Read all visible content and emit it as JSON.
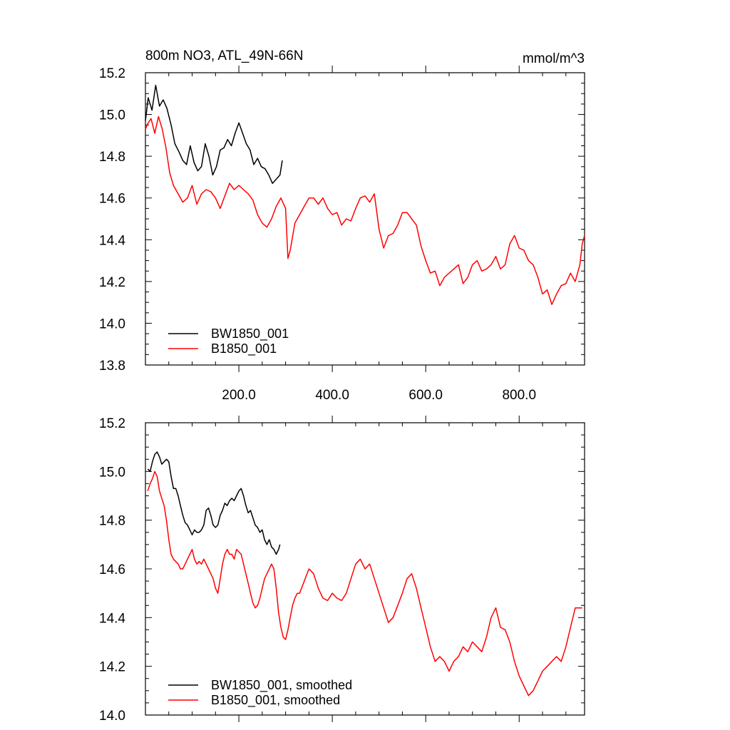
{
  "chart_data": [
    {
      "type": "line",
      "title": "800m NO3, ATL_49N-66N",
      "units_label": "mmol/m^3",
      "xlim": [
        0,
        940
      ],
      "ylim": [
        13.8,
        15.2
      ],
      "x_tick_labels": [
        "200.0",
        "400.0",
        "600.0",
        "800.0"
      ],
      "y_tick_labels": [
        "13.8",
        "14.0",
        "14.2",
        "14.4",
        "14.6",
        "14.8",
        "15.0",
        "15.2"
      ],
      "legend_position": "bottom-left",
      "grid": false,
      "series": [
        {
          "name": "BW1850_001",
          "color": "#000000",
          "x": [
            0,
            6,
            14,
            22,
            30,
            38,
            46,
            55,
            63,
            72,
            80,
            88,
            96,
            104,
            112,
            120,
            128,
            136,
            144,
            152,
            160,
            168,
            176,
            184,
            192,
            200,
            208,
            216,
            224,
            232,
            240,
            248,
            256,
            264,
            272,
            280,
            288,
            293
          ],
          "values": [
            14.97,
            15.08,
            15.02,
            15.14,
            15.04,
            15.07,
            15.03,
            14.95,
            14.86,
            14.82,
            14.78,
            14.76,
            14.85,
            14.77,
            14.73,
            14.75,
            14.86,
            14.8,
            14.71,
            14.75,
            14.83,
            14.84,
            14.88,
            14.85,
            14.91,
            14.96,
            14.91,
            14.86,
            14.83,
            14.76,
            14.79,
            14.75,
            14.74,
            14.71,
            14.67,
            14.69,
            14.71,
            14.78
          ]
        },
        {
          "name": "B1850_001",
          "color": "#ff0000",
          "x": [
            0,
            6,
            12,
            20,
            28,
            36,
            44,
            52,
            60,
            70,
            80,
            90,
            100,
            110,
            120,
            130,
            140,
            150,
            160,
            170,
            180,
            190,
            200,
            210,
            220,
            230,
            240,
            250,
            260,
            270,
            280,
            290,
            300,
            305,
            310,
            320,
            330,
            340,
            350,
            360,
            370,
            380,
            390,
            400,
            410,
            420,
            430,
            440,
            450,
            460,
            470,
            480,
            490,
            500,
            510,
            520,
            530,
            540,
            550,
            560,
            570,
            580,
            590,
            600,
            610,
            620,
            630,
            640,
            650,
            660,
            670,
            680,
            690,
            700,
            710,
            720,
            730,
            740,
            750,
            760,
            770,
            780,
            790,
            800,
            810,
            820,
            830,
            840,
            850,
            860,
            870,
            880,
            890,
            900,
            910,
            920,
            930,
            935,
            940
          ],
          "values": [
            14.93,
            14.96,
            14.98,
            14.91,
            14.99,
            14.93,
            14.84,
            14.72,
            14.66,
            14.62,
            14.58,
            14.6,
            14.66,
            14.57,
            14.62,
            14.64,
            14.63,
            14.6,
            14.55,
            14.61,
            14.67,
            14.64,
            14.66,
            14.64,
            14.62,
            14.59,
            14.52,
            14.48,
            14.46,
            14.5,
            14.56,
            14.6,
            14.55,
            14.31,
            14.35,
            14.48,
            14.52,
            14.56,
            14.6,
            14.6,
            14.57,
            14.6,
            14.55,
            14.52,
            14.53,
            14.47,
            14.5,
            14.49,
            14.55,
            14.6,
            14.61,
            14.58,
            14.62,
            14.45,
            14.36,
            14.42,
            14.43,
            14.47,
            14.53,
            14.53,
            14.5,
            14.47,
            14.37,
            14.3,
            14.24,
            14.25,
            14.18,
            14.22,
            14.24,
            14.26,
            14.28,
            14.19,
            14.22,
            14.28,
            14.3,
            14.25,
            14.26,
            14.28,
            14.32,
            14.26,
            14.28,
            14.38,
            14.42,
            14.36,
            14.35,
            14.3,
            14.28,
            14.22,
            14.14,
            14.16,
            14.09,
            14.14,
            14.18,
            14.19,
            14.24,
            14.2,
            14.28,
            14.38,
            14.42
          ]
        }
      ]
    },
    {
      "type": "line",
      "xlim": [
        0,
        940
      ],
      "ylim": [
        14.0,
        15.2
      ],
      "y_tick_labels": [
        "14.0",
        "14.2",
        "14.4",
        "14.6",
        "14.8",
        "15.0",
        "15.2"
      ],
      "legend_position": "bottom-left",
      "grid": false,
      "series": [
        {
          "name": "BW1850_001, smoothed",
          "color": "#000000",
          "x": [
            5,
            10,
            15,
            20,
            25,
            30,
            35,
            40,
            45,
            50,
            55,
            60,
            65,
            70,
            75,
            80,
            85,
            90,
            95,
            100,
            105,
            110,
            115,
            120,
            125,
            130,
            135,
            140,
            145,
            150,
            155,
            160,
            165,
            170,
            175,
            180,
            185,
            190,
            195,
            200,
            205,
            210,
            215,
            220,
            225,
            230,
            235,
            240,
            245,
            250,
            255,
            260,
            265,
            270,
            275,
            280,
            285,
            288
          ],
          "values": [
            15.01,
            15.0,
            15.04,
            15.07,
            15.08,
            15.06,
            15.03,
            15.04,
            15.05,
            15.04,
            14.98,
            14.93,
            14.93,
            14.9,
            14.86,
            14.82,
            14.79,
            14.78,
            14.76,
            14.74,
            14.76,
            14.75,
            14.75,
            14.76,
            14.78,
            14.84,
            14.85,
            14.82,
            14.78,
            14.77,
            14.78,
            14.82,
            14.84,
            14.87,
            14.86,
            14.88,
            14.89,
            14.88,
            14.9,
            14.92,
            14.93,
            14.9,
            14.86,
            14.83,
            14.84,
            14.81,
            14.78,
            14.77,
            14.75,
            14.76,
            14.72,
            14.7,
            14.72,
            14.69,
            14.68,
            14.66,
            14.68,
            14.7
          ]
        },
        {
          "name": "B1850_001, smoothed",
          "color": "#ff0000",
          "x": [
            5,
            10,
            15,
            20,
            25,
            30,
            35,
            40,
            45,
            50,
            55,
            60,
            65,
            70,
            75,
            80,
            85,
            90,
            95,
            100,
            105,
            110,
            115,
            120,
            125,
            130,
            135,
            140,
            145,
            150,
            155,
            160,
            165,
            170,
            175,
            180,
            185,
            190,
            195,
            200,
            205,
            210,
            215,
            220,
            225,
            230,
            235,
            240,
            245,
            250,
            255,
            260,
            265,
            270,
            275,
            280,
            285,
            290,
            295,
            300,
            305,
            310,
            315,
            320,
            325,
            330,
            340,
            350,
            360,
            370,
            380,
            390,
            400,
            410,
            420,
            430,
            440,
            450,
            460,
            470,
            480,
            490,
            500,
            510,
            520,
            530,
            540,
            550,
            560,
            570,
            580,
            590,
            600,
            610,
            620,
            630,
            640,
            650,
            660,
            670,
            680,
            690,
            700,
            710,
            720,
            730,
            740,
            750,
            760,
            770,
            780,
            790,
            800,
            810,
            820,
            830,
            840,
            850,
            860,
            870,
            880,
            890,
            900,
            910,
            920,
            930,
            935
          ],
          "values": [
            14.92,
            14.95,
            14.97,
            15.0,
            14.98,
            14.92,
            14.89,
            14.86,
            14.8,
            14.72,
            14.66,
            14.64,
            14.63,
            14.62,
            14.6,
            14.6,
            14.62,
            14.64,
            14.66,
            14.68,
            14.64,
            14.62,
            14.63,
            14.62,
            14.64,
            14.62,
            14.6,
            14.58,
            14.56,
            14.52,
            14.5,
            14.56,
            14.62,
            14.66,
            14.68,
            14.66,
            14.66,
            14.64,
            14.68,
            14.67,
            14.66,
            14.62,
            14.58,
            14.54,
            14.5,
            14.46,
            14.44,
            14.45,
            14.48,
            14.52,
            14.56,
            14.58,
            14.6,
            14.62,
            14.6,
            14.52,
            14.42,
            14.36,
            14.32,
            14.31,
            14.35,
            14.4,
            14.45,
            14.48,
            14.5,
            14.5,
            14.55,
            14.6,
            14.58,
            14.52,
            14.48,
            14.47,
            14.5,
            14.48,
            14.47,
            14.5,
            14.56,
            14.62,
            14.64,
            14.6,
            14.62,
            14.56,
            14.5,
            14.44,
            14.38,
            14.4,
            14.45,
            14.5,
            14.56,
            14.58,
            14.52,
            14.44,
            14.36,
            14.28,
            14.22,
            14.24,
            14.22,
            14.18,
            14.22,
            14.24,
            14.28,
            14.26,
            14.3,
            14.28,
            14.26,
            14.32,
            14.4,
            14.44,
            14.36,
            14.35,
            14.3,
            14.22,
            14.16,
            14.12,
            14.08,
            14.1,
            14.14,
            14.18,
            14.2,
            14.22,
            14.24,
            14.22,
            14.28,
            14.36,
            14.44,
            14.44,
            14.44
          ]
        }
      ]
    }
  ]
}
